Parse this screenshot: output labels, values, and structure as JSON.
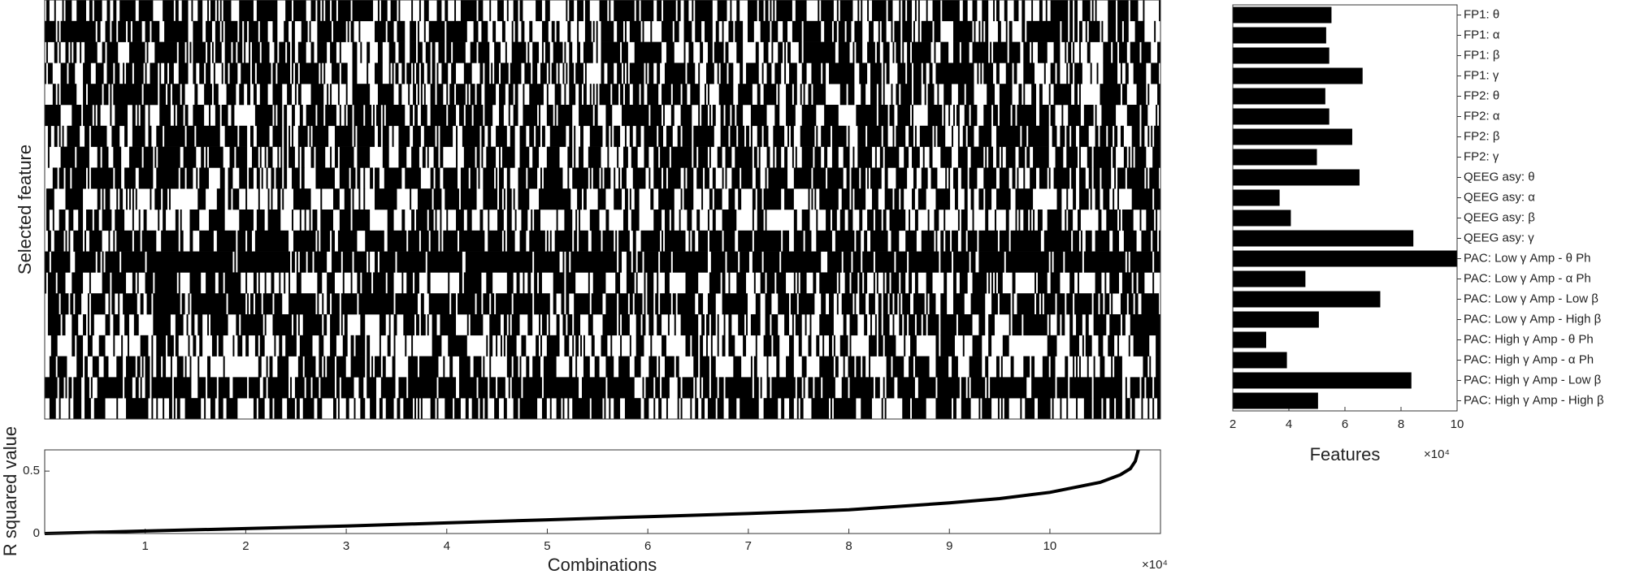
{
  "chart_data": [
    {
      "type": "matrix",
      "ylabel": "Selected feature"
    },
    {
      "type": "line",
      "xlabel": "Combinations",
      "ylabel": "R squared value",
      "x_multiplier": "×10⁴",
      "x": [
        0,
        1,
        2,
        3,
        4,
        5,
        6,
        7,
        8,
        9,
        9.5,
        10,
        10.5,
        10.7,
        10.8,
        10.85,
        10.88
      ],
      "values": [
        0,
        0.02,
        0.04,
        0.06,
        0.085,
        0.11,
        0.135,
        0.16,
        0.19,
        0.245,
        0.28,
        0.33,
        0.41,
        0.47,
        0.52,
        0.58,
        0.67
      ],
      "color": "#000000",
      "xlim": [
        0,
        11.1
      ],
      "xticks": [
        1,
        2,
        3,
        4,
        5,
        6,
        7,
        8,
        9,
        10
      ],
      "ylim": [
        0,
        0.67
      ],
      "yticks": [
        0,
        0.5
      ]
    },
    {
      "type": "barh",
      "xlabel": "Features",
      "x_multiplier": "×10⁴",
      "color": "#000000",
      "categories": [
        "FP1: θ",
        "FP1: α",
        "FP1: β",
        "FP1: γ",
        "FP2: θ",
        "FP2: α",
        "FP2: β",
        "FP2: γ",
        "QEEG asy: θ",
        "QEEG asy: α",
        "QEEG asy: β",
        "QEEG asy: γ",
        "PAC: Low γ Amp - θ Ph",
        "PAC: Low γ Amp - α Ph",
        "PAC: Low γ Amp - Low β",
        "PAC: Low γ Amp - High β",
        "PAC: High γ Amp - θ Ph",
        "PAC: High γ Amp - α Ph",
        "PAC: High γ Amp - Low β",
        "PAC: High γ Amp - High β"
      ],
      "values": [
        5.52,
        5.33,
        5.44,
        6.63,
        5.3,
        5.44,
        6.26,
        5.0,
        6.52,
        3.67,
        4.07,
        8.44,
        10,
        4.59,
        7.26,
        5.07,
        3.19,
        3.93,
        8.37,
        5.04
      ],
      "xlim": [
        2,
        10
      ],
      "xticks": [
        2,
        4,
        6,
        8,
        10
      ]
    }
  ]
}
